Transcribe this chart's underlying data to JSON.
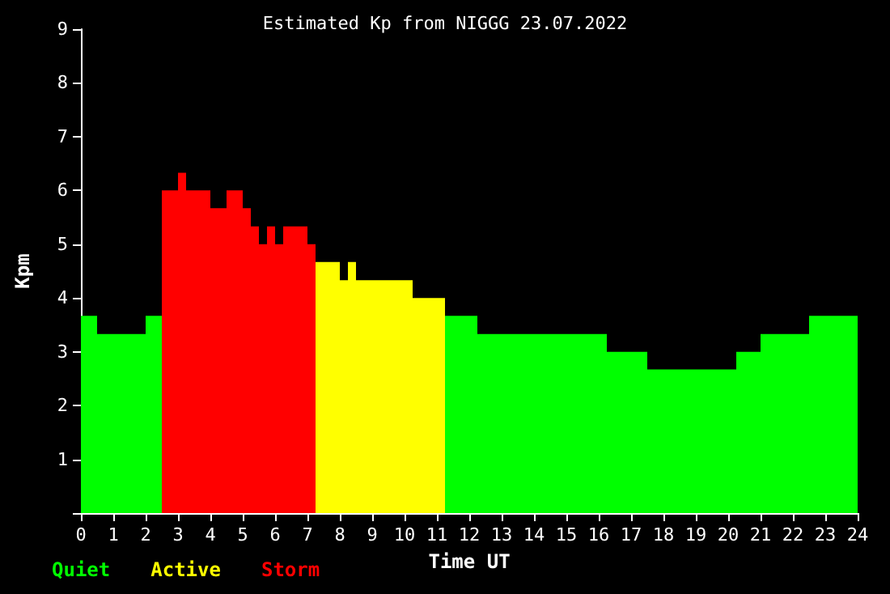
{
  "chart_data": {
    "type": "histogram",
    "title": "Estimated Kp from NIGGG 23.07.2022",
    "xlabel": "Time UT",
    "ylabel": "Kpm",
    "bins": [
      0,
      0.5,
      2,
      2.5,
      3,
      3.25,
      4,
      4.5,
      5,
      5.25,
      5.5,
      5.75,
      6,
      6.25,
      7,
      7.25,
      8,
      8.25,
      8.5,
      10.25,
      11.25,
      12.25,
      16.25,
      17.5,
      20.25,
      21,
      22.5,
      24
    ],
    "series": [
      {
        "name": "Quiet",
        "color": "#00ff00",
        "values": [
          3.67,
          3.33,
          3.67,
          null,
          null,
          null,
          null,
          null,
          null,
          null,
          null,
          null,
          null,
          null,
          null,
          null,
          null,
          null,
          null,
          null,
          3.67,
          3.33,
          3,
          2.67,
          3,
          3.33,
          3.67
        ]
      },
      {
        "name": "Active",
        "color": "#ffff00",
        "values": [
          null,
          null,
          null,
          null,
          null,
          null,
          null,
          null,
          null,
          null,
          null,
          null,
          null,
          null,
          null,
          4.67,
          4.33,
          4.67,
          4.33,
          4,
          null,
          null,
          null,
          null,
          null,
          null,
          null
        ]
      },
      {
        "name": "Storm",
        "color": "#ff0000",
        "values": [
          null,
          null,
          null,
          6,
          6.33,
          6,
          5.67,
          6,
          5.67,
          5.33,
          5,
          5.33,
          5,
          5.33,
          5,
          null,
          null,
          null,
          null,
          null,
          null,
          null,
          null,
          null,
          null,
          null,
          null
        ]
      }
    ],
    "xlim": [
      0,
      24
    ],
    "xticks": [
      0,
      1,
      2,
      3,
      4,
      5,
      6,
      7,
      8,
      9,
      10,
      11,
      12,
      13,
      14,
      15,
      16,
      17,
      18,
      19,
      20,
      21,
      22,
      23,
      24
    ],
    "ylim": [
      0,
      9
    ],
    "yticks": [
      {
        "value": 0,
        "label": null
      },
      1,
      2,
      3,
      4,
      5,
      6,
      7,
      8,
      9
    ],
    "grid": false,
    "legend": "bottom left"
  }
}
